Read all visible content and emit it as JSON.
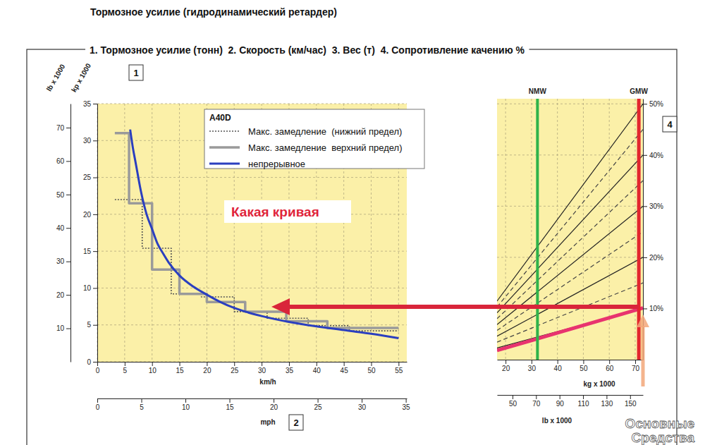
{
  "chart_data": [
    {
      "type": "line",
      "title": "Тормозное усилие (гидродинамический ретардер)",
      "subtitle": "1. Тормозное усилие (тонн)  2. Скорость (км/час)  3. Вес (т)  4. Сопротивление качению %",
      "xlabel": "km/h",
      "x2label": "mph",
      "ylabel": "kp x 1000",
      "y2label": "lb x 1000",
      "xlim": [
        0,
        56.5
      ],
      "xticks": [
        0,
        5,
        10,
        15,
        20,
        25,
        30,
        35,
        40,
        45,
        50,
        55
      ],
      "x2lim": [
        0,
        35.11
      ],
      "x2ticks": [
        0,
        5,
        10,
        15,
        20,
        25,
        30,
        35
      ],
      "ylim": [
        0,
        35
      ],
      "yticks": [
        0,
        5,
        10,
        15,
        20,
        25,
        30,
        35
      ],
      "y2lim": [
        0,
        77.16
      ],
      "y2ticks": [
        10,
        20,
        30,
        40,
        50,
        60,
        70
      ],
      "grid": true,
      "legend": "top-right",
      "legend_title": "A40D",
      "series": [
        {
          "name": "Макс. замедление  (нижний предел)",
          "color": "#555555",
          "line_style": "dotted",
          "x": [
            3.2,
            8.2,
            8.2,
            13.5,
            13.5,
            19,
            19,
            25,
            25,
            31,
            31,
            38.5,
            38.5,
            46,
            46,
            55
          ],
          "values": [
            22,
            22,
            15.4,
            15.4,
            9.2,
            9.2,
            8.8,
            8.8,
            6.8,
            6.8,
            5.9,
            5.9,
            4.9,
            4.9,
            4.2,
            4.2
          ]
        },
        {
          "name": "Макс. замедление  верхний предел)",
          "color": "#9a9a9a",
          "line_style": "solid",
          "x": [
            3.2,
            5.8,
            5.8,
            10,
            10,
            15,
            15,
            20,
            20,
            27,
            27,
            34.5,
            34.5,
            42,
            42,
            55
          ],
          "values": [
            31,
            31,
            21.5,
            21.5,
            12.5,
            12.5,
            9.2,
            9.2,
            8.1,
            8.1,
            6.8,
            6.8,
            5.5,
            5.5,
            4.6,
            4.6
          ]
        },
        {
          "name": "непрерывное",
          "color": "#2b3fbf",
          "line_style": "solid",
          "x": [
            6,
            6.5,
            7,
            8,
            9,
            10,
            11,
            12,
            13,
            15,
            17.5,
            20,
            22.5,
            25,
            27.5,
            30,
            35,
            40,
            45,
            50,
            55
          ],
          "values": [
            31.5,
            29,
            27,
            23,
            20,
            18,
            16,
            14.7,
            13.5,
            11.7,
            10.2,
            9.1,
            8.1,
            7.3,
            6.7,
            6.2,
            5.4,
            4.8,
            4.3,
            3.8,
            3.2
          ]
        }
      ],
      "annotations": [
        {
          "text": "1"
        },
        {
          "text": "2"
        },
        {
          "text": "Какая кривая"
        }
      ]
    },
    {
      "type": "line",
      "xlabel": "kg x 1000",
      "x2label": "lb x 1000",
      "xlim": [
        16.7,
        73
      ],
      "xticks": [
        20,
        30,
        40,
        50,
        60,
        70
      ],
      "x2lim": [
        36.82,
        160.94
      ],
      "x2ticks": [
        50,
        70,
        90,
        110,
        130,
        150
      ],
      "ylim": [
        0,
        51
      ],
      "yticks": [
        {
          "value": 10,
          "label": "10%"
        },
        {
          "value": 20,
          "label": "20%"
        },
        {
          "value": 30,
          "label": "30%"
        },
        {
          "value": 40,
          "label": "40%"
        },
        {
          "value": 50,
          "label": "50%"
        }
      ],
      "grid": true,
      "vlines": [
        {
          "label": "NMW",
          "x": 32.3,
          "color": "#2fb34a"
        },
        {
          "label": "GMW",
          "x": 71.4,
          "color": "#e3262e"
        }
      ],
      "series": [
        {
          "color": "#222222",
          "line_style": "solid",
          "x": [
            16.7,
            73
          ],
          "values": [
            2.29,
            10
          ]
        },
        {
          "color": "#444444",
          "line_style": "dashed",
          "x": [
            16.7,
            73
          ],
          "values": [
            3.43,
            15
          ]
        },
        {
          "color": "#222222",
          "line_style": "solid",
          "x": [
            16.7,
            73
          ],
          "values": [
            4.58,
            20
          ]
        },
        {
          "color": "#444444",
          "line_style": "dashed",
          "x": [
            16.7,
            73
          ],
          "values": [
            5.72,
            25
          ]
        },
        {
          "color": "#222222",
          "line_style": "solid",
          "x": [
            16.7,
            73
          ],
          "values": [
            6.86,
            30
          ]
        },
        {
          "color": "#444444",
          "line_style": "dashed",
          "x": [
            16.7,
            73
          ],
          "values": [
            8.01,
            35
          ]
        },
        {
          "color": "#222222",
          "line_style": "solid",
          "x": [
            16.7,
            73
          ],
          "values": [
            9.15,
            40
          ]
        },
        {
          "color": "#444444",
          "line_style": "dashed",
          "x": [
            16.7,
            73
          ],
          "values": [
            10.29,
            45
          ]
        },
        {
          "color": "#222222",
          "line_style": "solid",
          "x": [
            16.7,
            73
          ],
          "values": [
            11.44,
            50
          ]
        },
        {
          "color": "#e8336f",
          "line_style": "solid",
          "x": [
            16.7,
            73
          ],
          "values": [
            1.8,
            10.1
          ]
        }
      ],
      "annotations": [
        {
          "text": "4"
        },
        {
          "text": "Основные"
        },
        {
          "text": "Средства"
        }
      ]
    }
  ]
}
